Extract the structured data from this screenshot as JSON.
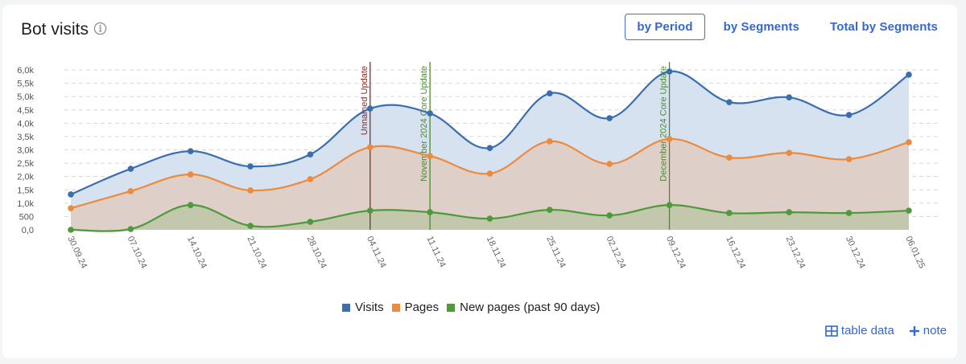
{
  "header": {
    "title": "Bot visits",
    "info_icon": "info-circle-icon"
  },
  "tabs": [
    {
      "label": "by Period",
      "active": true
    },
    {
      "label": "by Segments",
      "active": false
    },
    {
      "label": "Total by Segments",
      "active": false
    }
  ],
  "colors": {
    "visits": "#3a6fad",
    "pages": "#ec8a3e",
    "new_pages": "#4d9a3a",
    "visits_fill": "#d6e2ef",
    "pages_fill": "#decfc8",
    "new_pages_fill": "#c3c7ac",
    "unnamed_update": "#8b2a2a",
    "core_update": "#4e8a34",
    "link": "#3367d6"
  },
  "legend": [
    {
      "label": "Visits",
      "color": "#3a6fad"
    },
    {
      "label": "Pages",
      "color": "#ec8a3e"
    },
    {
      "label": "New pages (past 90 days)",
      "color": "#4d9a3a"
    }
  ],
  "actions": {
    "table_data": "table data",
    "table_icon": "table-grid-icon",
    "note": "note",
    "note_icon": "plus-icon"
  },
  "chart_data": {
    "type": "area",
    "title": "Bot visits",
    "xlabel": "",
    "ylabel": "",
    "ylim": [
      0,
      6000
    ],
    "y_ticks": [
      "0,0",
      "500",
      "1,0k",
      "1,5k",
      "2,0k",
      "2,5k",
      "3,0k",
      "3,5k",
      "4,0k",
      "4,5k",
      "5,0k",
      "5,5k",
      "6,0k"
    ],
    "grid": true,
    "legend_position": "bottom",
    "categories": [
      "30.09.24",
      "07.10.24",
      "14.10.24",
      "21.10.24",
      "28.10.24",
      "04.11.24",
      "11.11.24",
      "18.11.24",
      "25.11.24",
      "02.12.24",
      "09.12.24",
      "16.12.24",
      "23.12.24",
      "30.12.24",
      "06.01.25"
    ],
    "series": [
      {
        "name": "Visits",
        "values": [
          1330,
          2290,
          2950,
          2380,
          2830,
          4550,
          4370,
          3070,
          5120,
          4190,
          5940,
          4790,
          4970,
          4310,
          5820
        ]
      },
      {
        "name": "Pages",
        "values": [
          810,
          1450,
          2080,
          1480,
          1900,
          3100,
          2770,
          2110,
          3320,
          2470,
          3410,
          2710,
          2890,
          2650,
          3290
        ]
      },
      {
        "name": "New pages (past 90 days)",
        "values": [
          0,
          30,
          930,
          150,
          300,
          720,
          660,
          420,
          750,
          540,
          930,
          630,
          660,
          630,
          720
        ]
      }
    ],
    "annotations": [
      {
        "label": "Unnamed Update",
        "x": "04.11.24",
        "color": "#8b2a2a"
      },
      {
        "label": "November 2024 Core Update",
        "x": "11.11.24",
        "color": "#4e8a34"
      },
      {
        "label": "December 2024 Core Update",
        "x": "09.12.24",
        "color": "#4e8a34"
      }
    ]
  }
}
